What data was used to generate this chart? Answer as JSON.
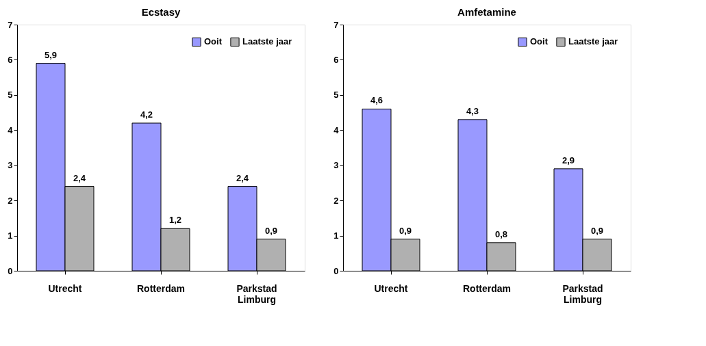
{
  "chart_data": [
    {
      "type": "bar",
      "title": "Ecstasy",
      "categories": [
        "Utrecht",
        "Rotterdam",
        "Parkstad Limburg"
      ],
      "ylim": [
        0,
        7
      ],
      "yticks": [
        0,
        1,
        2,
        3,
        4,
        5,
        6,
        7
      ],
      "grid": false,
      "legend": "top right",
      "series": [
        {
          "name": "Ooit",
          "color": "#9999ff",
          "values": [
            5.9,
            4.2,
            2.4
          ],
          "value_labels": [
            "5,9",
            "4,2",
            "2,4"
          ]
        },
        {
          "name": "Laatste jaar",
          "color": "#b0b0b0",
          "values": [
            2.4,
            1.2,
            0.9
          ],
          "value_labels": [
            "2,4",
            "1,2",
            "0,9"
          ]
        }
      ]
    },
    {
      "type": "bar",
      "title": "Amfetamine",
      "categories": [
        "Utrecht",
        "Rotterdam",
        "Parkstad Limburg"
      ],
      "ylim": [
        0,
        7
      ],
      "yticks": [
        0,
        1,
        2,
        3,
        4,
        5,
        6,
        7
      ],
      "grid": false,
      "legend": "top right",
      "series": [
        {
          "name": "Ooit",
          "color": "#9999ff",
          "values": [
            4.6,
            4.3,
            2.9
          ],
          "value_labels": [
            "4,6",
            "4,3",
            "2,9"
          ]
        },
        {
          "name": "Laatste jaar",
          "color": "#b0b0b0",
          "values": [
            0.9,
            0.8,
            0.9
          ],
          "value_labels": [
            "0,9",
            "0,8",
            "0,9"
          ]
        }
      ]
    }
  ]
}
